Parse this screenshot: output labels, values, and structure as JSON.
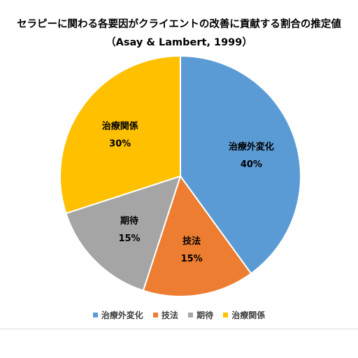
{
  "chart_data": {
    "type": "pie",
    "title": "セラピーに関わる各要因がクライエントの改善に貢献する割合の推定値",
    "subtitle": "（Asay & Lambert, 1999）",
    "categories": [
      "治療外変化",
      "技法",
      "期待",
      "治療関係"
    ],
    "values": [
      40,
      15,
      15,
      30
    ],
    "labels": [
      "40%",
      "15%",
      "15%",
      "30%"
    ],
    "colors": [
      "#5B9BD5",
      "#ED7D31",
      "#A5A5A5",
      "#FFC000"
    ],
    "legend_position": "bottom",
    "data_label_color": "#000000"
  }
}
